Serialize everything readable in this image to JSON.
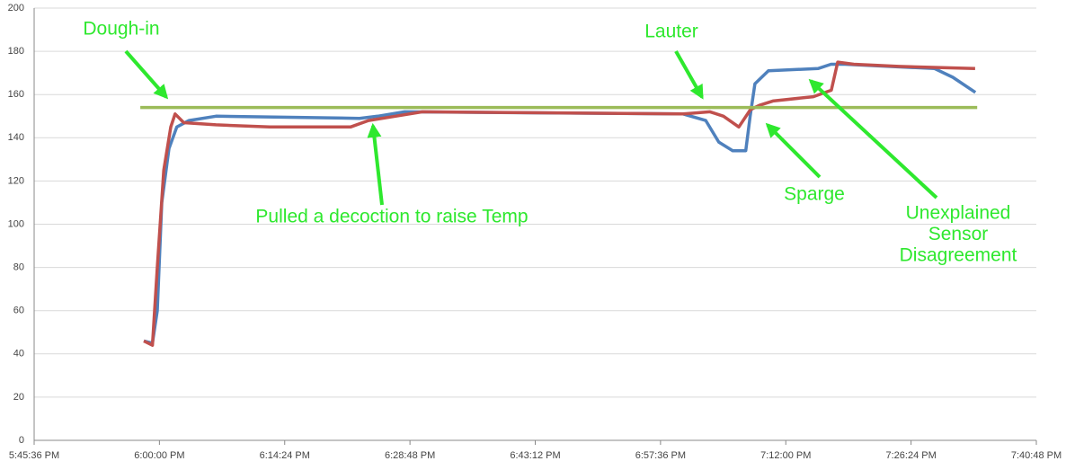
{
  "chart_data": {
    "type": "line",
    "xlim": [
      "5:45:36 PM",
      "7:40:48 PM"
    ],
    "xticks": [
      "5:45:36 PM",
      "6:00:00 PM",
      "6:14:24 PM",
      "6:28:48 PM",
      "6:43:12 PM",
      "6:57:36 PM",
      "7:12:00 PM",
      "7:26:24 PM",
      "7:40:48 PM"
    ],
    "ylim": [
      0,
      200
    ],
    "yticks": [
      0,
      20,
      40,
      60,
      80,
      100,
      120,
      140,
      160,
      180,
      200
    ],
    "grid": true,
    "series": [
      {
        "color": "#4f81bd",
        "x": [
          "5:58:12 PM",
          "5:59:12 PM",
          "5:59:45 PM",
          "6:00:16 PM",
          "6:01:06 PM",
          "6:02:00 PM",
          "6:03:24 PM",
          "6:06:30 PM",
          "6:23:00 PM",
          "6:25:06 PM",
          "6:28:12 PM",
          "7:00:12 PM",
          "7:02:48 PM",
          "7:04:18 PM",
          "7:05:54 PM",
          "7:07:24 PM",
          "7:07:54 PM",
          "7:08:27 PM",
          "7:10:00 PM",
          "7:15:42 PM",
          "7:17:12 PM",
          "7:18:48 PM",
          "7:29:06 PM",
          "7:31:12 PM",
          "7:33:48 PM"
        ],
        "values": [
          46,
          45,
          60,
          110,
          135,
          145,
          148,
          150,
          149,
          150,
          152,
          151,
          148,
          138,
          134,
          134,
          150,
          165,
          171,
          172,
          174,
          174,
          172,
          168,
          161
        ]
      },
      {
        "color": "#c0504d",
        "x": [
          "5:58:12 PM",
          "5:59:12 PM",
          "5:59:45 PM",
          "6:00:30 PM",
          "6:01:18 PM",
          "6:01:48 PM",
          "6:02:48 PM",
          "6:06:30 PM",
          "6:12:40 PM",
          "6:21:58 PM",
          "6:24:02 PM",
          "6:27:08 PM",
          "6:30:14 PM",
          "7:00:11 PM",
          "7:03:17 PM",
          "7:04:50 PM",
          "7:06:36 PM",
          "7:07:56 PM",
          "7:08:58 PM",
          "7:10:31 PM",
          "7:15:10 PM",
          "7:17:14 PM",
          "7:17:58 PM",
          "7:19:49 PM",
          "7:25:00 PM",
          "7:33:46 PM"
        ],
        "values": [
          46,
          44,
          80,
          125,
          145,
          151,
          147,
          146,
          145,
          145,
          148,
          150,
          152,
          151,
          152,
          150,
          145,
          153,
          155,
          157,
          159,
          162,
          175,
          174,
          173,
          172
        ]
      },
      {
        "color": "#9bbb59",
        "x": [
          "5:57:48 PM",
          "7:34:00 PM"
        ],
        "values": [
          154,
          154
        ]
      }
    ],
    "annotations": [
      {
        "text": "Dough-in"
      },
      {
        "text": "Lauter"
      },
      {
        "text": "Pulled a decoction to raise Temp"
      },
      {
        "text": "Sparge"
      },
      {
        "lines": [
          "Unexplained",
          "Sensor",
          "Disagreement"
        ]
      }
    ],
    "annotation_color": "#2ee82e"
  }
}
